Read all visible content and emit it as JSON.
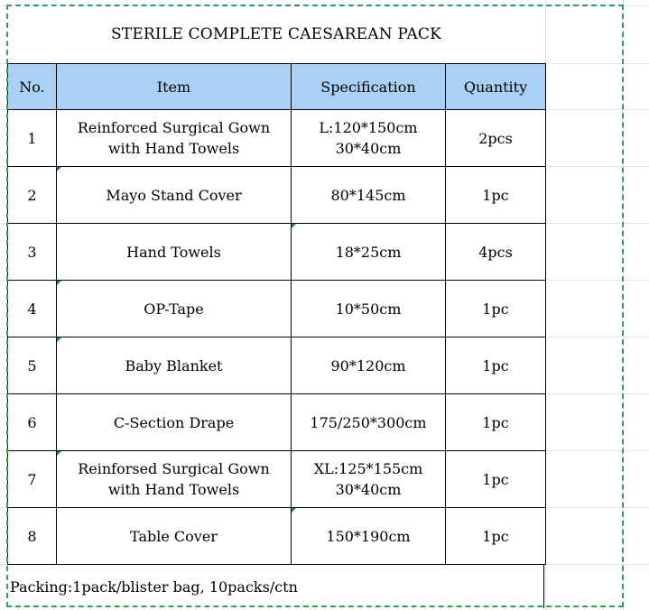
{
  "title": "STERILE COMPLETE CAESAREAN PACK",
  "headers": {
    "no": "No.",
    "item": "Item",
    "spec": "Specification",
    "qty": "Quantity"
  },
  "rows": [
    {
      "no": "1",
      "item": [
        "Reinforced Surgical Gown",
        "with Hand Towels"
      ],
      "spec": [
        "L:120*150cm",
        "30*40cm"
      ],
      "qty": "2pcs"
    },
    {
      "no": "2",
      "item": [
        "Mayo Stand Cover"
      ],
      "spec": [
        "80*145cm"
      ],
      "qty": "1pc"
    },
    {
      "no": "3",
      "item": [
        "Hand Towels"
      ],
      "spec": [
        "18*25cm"
      ],
      "qty": "4pcs"
    },
    {
      "no": "4",
      "item": [
        "OP-Tape"
      ],
      "spec": [
        "10*50cm"
      ],
      "qty": "1pc"
    },
    {
      "no": "5",
      "item": [
        "Baby Blanket"
      ],
      "spec": [
        "90*120cm"
      ],
      "qty": "1pc"
    },
    {
      "no": "6",
      "item": [
        "C-Section Drape"
      ],
      "spec": [
        "175/250*300cm"
      ],
      "qty": "1pc"
    },
    {
      "no": "7",
      "item": [
        "Reinforsed Surgical Gown",
        "with Hand Towels"
      ],
      "spec": [
        "XL:125*155cm",
        "30*40cm"
      ],
      "qty": "1pc"
    },
    {
      "no": "8",
      "item": [
        "Table Cover"
      ],
      "spec": [
        "150*190cm"
      ],
      "qty": "1pc"
    }
  ],
  "packing": "Packing:1pack/blister bag, 10packs/ctn",
  "colors": {
    "header_bg": "#a9d0f5",
    "selection_border": "#2fa05a",
    "comment_marker": "#1a8a3a"
  }
}
